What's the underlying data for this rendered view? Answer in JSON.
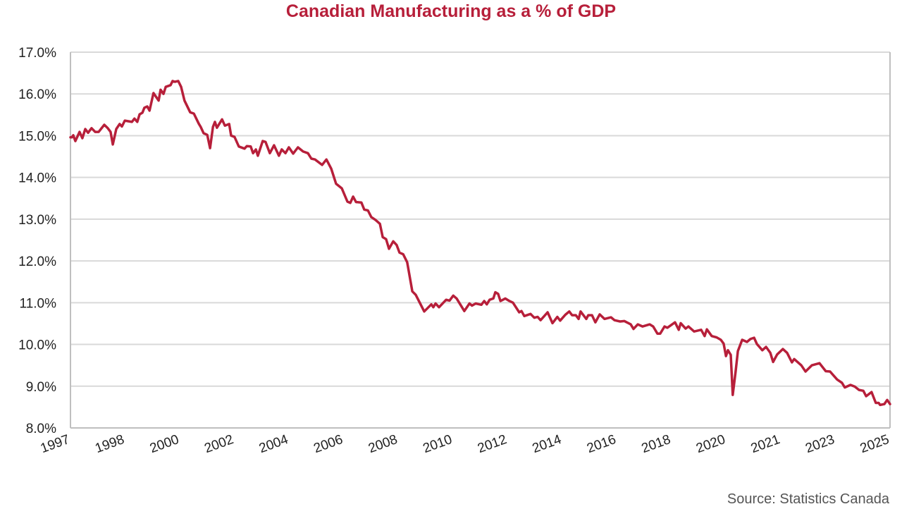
{
  "chart_data": {
    "type": "line",
    "title": "Canadian Manufacturing as a % of GDP",
    "source": "Source: Statistics Canada",
    "xlabel": "",
    "ylabel": "",
    "ylim": [
      8.0,
      17.0
    ],
    "y_ticks": [
      "8.0%",
      "9.0%",
      "10.0%",
      "11.0%",
      "12.0%",
      "13.0%",
      "14.0%",
      "15.0%",
      "16.0%",
      "17.0%"
    ],
    "x_tick_labels": [
      "1997",
      "1998",
      "2000",
      "2002",
      "2004",
      "2006",
      "2008",
      "2010",
      "2012",
      "2014",
      "2016",
      "2018",
      "2020",
      "2021",
      "2023",
      "2025"
    ],
    "xlim": [
      1997.0,
      2025.82
    ],
    "grid": true,
    "legend": "none",
    "color": "#B71F3A",
    "series": [
      {
        "x": [
          1997.0,
          1997.05,
          1997.1,
          1997.17,
          1997.32,
          1997.42,
          1997.52,
          1997.62,
          1997.74,
          1997.87,
          1997.99,
          1998.19,
          1998.31,
          1998.41,
          1998.49,
          1998.61,
          1998.73,
          1998.81,
          1998.91,
          1999.16,
          1999.25,
          1999.35,
          1999.43,
          1999.53,
          1999.6,
          1999.7,
          1999.78,
          1999.92,
          2000.1,
          2000.17,
          2000.27,
          2000.35,
          2000.52,
          2000.59,
          2000.67,
          2000.79,
          2000.89,
          2001.01,
          2001.21,
          2001.34,
          2001.51,
          2001.58,
          2001.68,
          2001.81,
          2001.91,
          2002.01,
          2002.08,
          2002.15,
          2002.33,
          2002.43,
          2002.58,
          2002.65,
          2002.77,
          2002.92,
          2003.12,
          2003.2,
          2003.34,
          2003.42,
          2003.52,
          2003.59,
          2003.76,
          2003.86,
          2004.01,
          2004.16,
          2004.33,
          2004.43,
          2004.56,
          2004.68,
          2004.83,
          2005.0,
          2005.18,
          2005.35,
          2005.47,
          2005.6,
          2005.85,
          2006.0,
          2006.17,
          2006.34,
          2006.54,
          2006.74,
          2006.84,
          2006.94,
          2007.04,
          2007.23,
          2007.33,
          2007.46,
          2007.58,
          2007.73,
          2007.88,
          2007.98,
          2008.1,
          2008.2,
          2008.35,
          2008.47,
          2008.57,
          2008.7,
          2008.84,
          2009.02,
          2009.14,
          2009.44,
          2009.69,
          2009.76,
          2009.84,
          2009.96,
          2010.21,
          2010.33,
          2010.46,
          2010.58,
          2010.85,
          2011.03,
          2011.12,
          2011.25,
          2011.45,
          2011.55,
          2011.64,
          2011.74,
          2011.87,
          2011.94,
          2012.04,
          2012.12,
          2012.29,
          2012.41,
          2012.56,
          2012.78,
          2012.86,
          2012.96,
          2013.18,
          2013.31,
          2013.43,
          2013.53,
          2013.78,
          2013.95,
          2014.12,
          2014.22,
          2014.4,
          2014.54,
          2014.64,
          2014.77,
          2014.87,
          2014.94,
          2015.14,
          2015.21,
          2015.34,
          2015.46,
          2015.61,
          2015.78,
          2016.01,
          2016.13,
          2016.33,
          2016.48,
          2016.7,
          2016.8,
          2016.95,
          2017.12,
          2017.37,
          2017.49,
          2017.64,
          2017.74,
          2017.89,
          2017.99,
          2018.26,
          2018.39,
          2018.46,
          2018.63,
          2018.73,
          2018.93,
          2019.18,
          2019.3,
          2019.38,
          2019.55,
          2019.72,
          2019.87,
          2019.97,
          2020.05,
          2020.12,
          2020.22,
          2020.29,
          2020.39,
          2020.47,
          2020.62,
          2020.79,
          2020.91,
          2021.04,
          2021.14,
          2021.33,
          2021.46,
          2021.61,
          2021.71,
          2021.85,
          2022.05,
          2022.2,
          2022.37,
          2022.45,
          2022.7,
          2022.85,
          2023.07,
          2023.34,
          2023.56,
          2023.71,
          2023.96,
          2024.13,
          2024.23,
          2024.43,
          2024.58,
          2024.73,
          2024.88,
          2024.98,
          2025.17,
          2025.32,
          2025.42,
          2025.47,
          2025.62,
          2025.72,
          2025.82
        ],
        "values": [
          14.96,
          14.96,
          15.01,
          14.87,
          15.09,
          14.94,
          15.16,
          15.07,
          15.18,
          15.09,
          15.09,
          15.26,
          15.18,
          15.09,
          14.79,
          15.16,
          15.28,
          15.22,
          15.36,
          15.33,
          15.41,
          15.33,
          15.51,
          15.55,
          15.67,
          15.7,
          15.6,
          16.02,
          15.84,
          16.1,
          16.0,
          16.17,
          16.21,
          16.31,
          16.29,
          16.31,
          16.17,
          15.84,
          15.56,
          15.53,
          15.29,
          15.21,
          15.06,
          15.02,
          14.7,
          15.21,
          15.33,
          15.19,
          15.39,
          15.24,
          15.28,
          15.0,
          14.97,
          14.74,
          14.69,
          14.75,
          14.74,
          14.58,
          14.67,
          14.52,
          14.87,
          14.85,
          14.58,
          14.77,
          14.52,
          14.67,
          14.58,
          14.72,
          14.57,
          14.72,
          14.62,
          14.58,
          14.45,
          14.43,
          14.3,
          14.43,
          14.21,
          13.85,
          13.74,
          13.42,
          13.39,
          13.54,
          13.41,
          13.4,
          13.23,
          13.21,
          13.05,
          12.98,
          12.89,
          12.57,
          12.52,
          12.29,
          12.47,
          12.38,
          12.2,
          12.16,
          11.97,
          11.27,
          11.19,
          10.79,
          10.96,
          10.89,
          10.98,
          10.89,
          11.07,
          11.05,
          11.17,
          11.1,
          10.8,
          10.98,
          10.93,
          10.98,
          10.95,
          11.04,
          10.96,
          11.07,
          11.1,
          11.25,
          11.21,
          11.04,
          11.1,
          11.05,
          11.0,
          10.77,
          10.8,
          10.68,
          10.73,
          10.64,
          10.66,
          10.58,
          10.77,
          10.51,
          10.66,
          10.57,
          10.71,
          10.79,
          10.7,
          10.7,
          10.61,
          10.79,
          10.61,
          10.7,
          10.7,
          10.53,
          10.72,
          10.61,
          10.65,
          10.58,
          10.55,
          10.56,
          10.48,
          10.37,
          10.48,
          10.43,
          10.48,
          10.43,
          10.26,
          10.26,
          10.43,
          10.4,
          10.53,
          10.35,
          10.51,
          10.38,
          10.43,
          10.31,
          10.35,
          10.2,
          10.36,
          10.2,
          10.17,
          10.11,
          10.02,
          9.72,
          9.86,
          9.75,
          8.79,
          9.35,
          9.84,
          10.11,
          10.06,
          10.13,
          10.16,
          10.01,
          9.86,
          9.94,
          9.8,
          9.58,
          9.76,
          9.89,
          9.8,
          9.57,
          9.65,
          9.5,
          9.35,
          9.5,
          9.55,
          9.36,
          9.35,
          9.16,
          9.08,
          8.97,
          9.03,
          8.99,
          8.91,
          8.89,
          8.76,
          8.86,
          8.6,
          8.6,
          8.55,
          8.57,
          8.67,
          8.57
        ]
      }
    ]
  }
}
